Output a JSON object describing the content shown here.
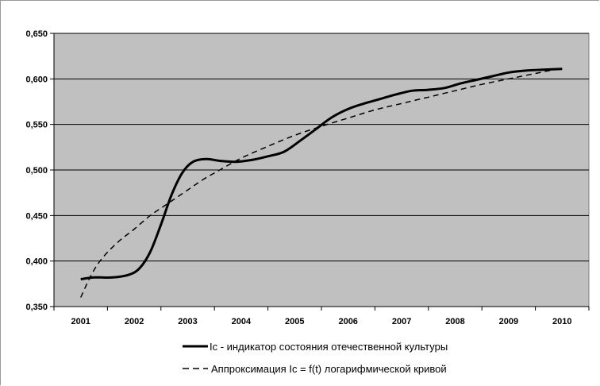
{
  "chart_data": {
    "type": "line",
    "x_tick_labels": [
      "2001",
      "2002",
      "2003",
      "2004",
      "2005",
      "2006",
      "2007",
      "2008",
      "2009",
      "2010"
    ],
    "y_tick_labels": [
      "0,350",
      "0,400",
      "0,450",
      "0,500",
      "0,550",
      "0,600",
      "0,650"
    ],
    "ylim": [
      0.35,
      0.65
    ],
    "xlim": [
      2001,
      2010
    ],
    "grid": "horizontal",
    "plot_background": "#C0C0C0",
    "legend_position": "bottom",
    "series": [
      {
        "name": "Ic - индикатор состояния отечественной культуры",
        "style": "solid",
        "color": "#000000",
        "x": [
          2001,
          2001.25,
          2001.6,
          2001.9,
          2002.1,
          2002.3,
          2002.5,
          2002.7,
          2002.9,
          2003.1,
          2003.35,
          2003.6,
          2003.9,
          2004.2,
          2004.5,
          2004.8,
          2005.1,
          2005.4,
          2005.7,
          2006.0,
          2006.3,
          2006.6,
          2006.9,
          2007.2,
          2007.5,
          2007.8,
          2008.1,
          2008.4,
          2008.7,
          2009.0,
          2009.3,
          2009.6,
          2010.0
        ],
        "values": [
          0.38,
          0.382,
          0.382,
          0.385,
          0.392,
          0.41,
          0.44,
          0.473,
          0.497,
          0.509,
          0.512,
          0.51,
          0.509,
          0.511,
          0.515,
          0.52,
          0.532,
          0.545,
          0.558,
          0.567,
          0.573,
          0.578,
          0.583,
          0.587,
          0.588,
          0.59,
          0.595,
          0.599,
          0.603,
          0.607,
          0.609,
          0.61,
          0.611
        ]
      },
      {
        "name": "Аппроксимация Ic = f(t) логарифмической кривой",
        "style": "dashed",
        "color": "#000000",
        "x": [
          2001,
          2001.2,
          2001.4,
          2001.7,
          2002.0,
          2002.3,
          2002.6,
          2003.0,
          2003.3,
          2003.6,
          2004.0,
          2004.5,
          2005.0,
          2005.5,
          2006.0,
          2006.5,
          2007.0,
          2007.5,
          2008.0,
          2008.5,
          2009.0,
          2009.5,
          2010.0
        ],
        "values": [
          0.36,
          0.385,
          0.403,
          0.421,
          0.435,
          0.45,
          0.462,
          0.478,
          0.49,
          0.5,
          0.513,
          0.526,
          0.538,
          0.548,
          0.557,
          0.566,
          0.573,
          0.58,
          0.587,
          0.594,
          0.6,
          0.606,
          0.612
        ]
      }
    ]
  }
}
